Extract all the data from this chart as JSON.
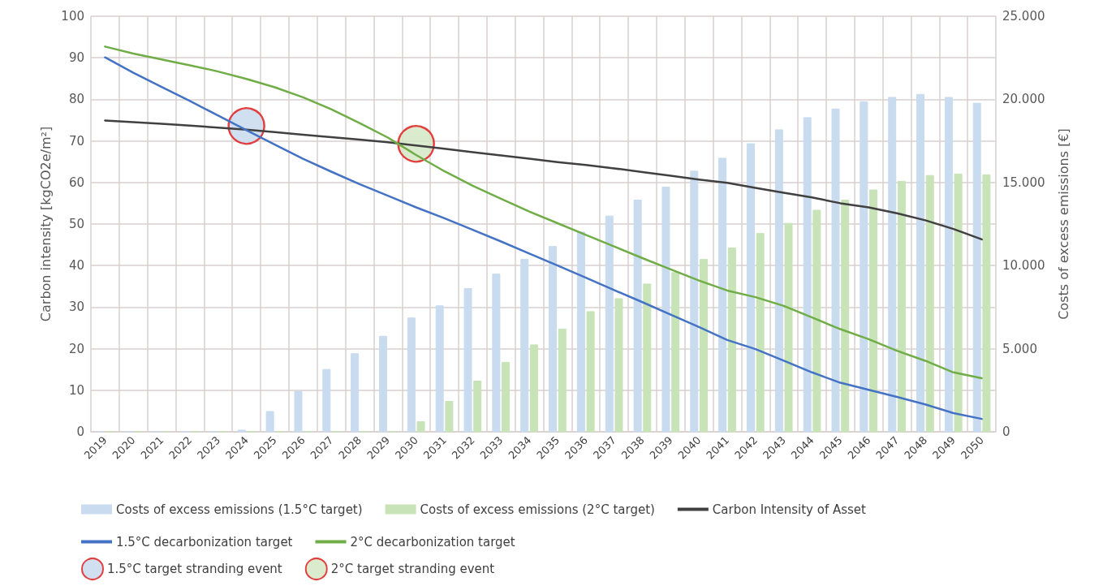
{
  "chart_data": {
    "type": "bar",
    "ylabel": "Carbon intensity [kgCO2e/m²]",
    "y2label": "Costs of excess emissions [€]",
    "categories": [
      "2019",
      "2020",
      "2021",
      "2022",
      "2023",
      "2024",
      "2025",
      "2026",
      "2027",
      "2028",
      "2029",
      "2030",
      "2031",
      "2032",
      "2033",
      "2034",
      "2035",
      "2036",
      "2037",
      "2038",
      "2039",
      "2040",
      "2041",
      "2042",
      "2043",
      "2044",
      "2045",
      "2046",
      "2047",
      "2048",
      "2049",
      "2050"
    ],
    "ylim": [
      0,
      100
    ],
    "yticks": [
      0,
      10,
      20,
      30,
      40,
      50,
      60,
      70,
      80,
      90,
      100
    ],
    "y2lim": [
      0,
      25
    ],
    "y2ticks": [
      0,
      {
        "value": 5,
        "label": "5.000"
      },
      {
        "value": 10,
        "label": "10.000"
      },
      {
        "value": 15,
        "label": "15.000"
      },
      {
        "value": 20,
        "label": "20.000"
      },
      {
        "value": 25,
        "label": "25.000"
      }
    ],
    "grid": true,
    "legend": "bottom",
    "marker": "none",
    "line_style": "solid",
    "series": [
      {
        "name": "Costs of excess emissions (1.5°C target)",
        "axis": "y2",
        "color": "#c9dbef",
        "values": [
          0,
          0,
          0,
          0,
          0,
          0.1,
          1.22,
          2.44,
          3.75,
          4.7,
          5.75,
          6.85,
          7.58,
          8.62,
          9.49,
          10.37,
          11.15,
          12.02,
          12.98,
          13.94,
          14.72,
          15.68,
          16.46,
          17.33,
          18.17,
          18.9,
          19.42,
          19.86,
          20.12,
          20.3,
          20.12,
          19.77
        ]
      },
      {
        "name": "Costs of excess emissions (2°C target)",
        "axis": "y2",
        "color": "#c8e3b8",
        "values": [
          0,
          0,
          0,
          0,
          0,
          0,
          0,
          0,
          0,
          0,
          0,
          0.61,
          1.83,
          3.05,
          4.18,
          5.23,
          6.18,
          7.23,
          8.01,
          8.89,
          9.58,
          10.37,
          11.06,
          11.93,
          12.54,
          13.33,
          13.94,
          14.55,
          15.07,
          15.42,
          15.51,
          15.46
        ]
      },
      {
        "name": "Carbon Intensity of Asset",
        "type": "line",
        "color": "#404040",
        "values": [
          74.9,
          74.5,
          74.1,
          73.7,
          73.2,
          72.7,
          72.1,
          71.5,
          70.9,
          70.3,
          69.7,
          68.9,
          68.1,
          67.3,
          66.5,
          65.7,
          64.9,
          64.2,
          63.4,
          62.5,
          61.6,
          60.7,
          59.9,
          58.7,
          57.5,
          56.4,
          55.0,
          54.0,
          52.6,
          50.9,
          48.8,
          46.3
        ]
      },
      {
        "name": "1.5°C decarbonization target",
        "type": "line",
        "color": "#4472c4",
        "values": [
          90.1,
          86.4,
          83.0,
          79.6,
          76.1,
          72.6,
          69.1,
          65.7,
          62.6,
          59.6,
          56.8,
          54.0,
          51.4,
          48.6,
          45.8,
          42.9,
          40.0,
          37.1,
          34.1,
          31.2,
          28.2,
          25.2,
          22.1,
          19.9,
          17.1,
          14.3,
          11.8,
          10.1,
          8.4,
          6.6,
          4.5,
          3.1
        ]
      },
      {
        "name": "2°C decarbonization target",
        "type": "line",
        "color": "#70ad47",
        "values": [
          92.7,
          91.0,
          89.6,
          88.2,
          86.7,
          84.9,
          82.9,
          80.5,
          77.6,
          74.3,
          70.8,
          66.6,
          62.7,
          59.2,
          56.1,
          53.0,
          50.2,
          47.4,
          44.6,
          41.8,
          39.1,
          36.4,
          34.0,
          32.4,
          30.3,
          27.5,
          24.7,
          22.3,
          19.5,
          17.1,
          14.3,
          12.9
        ]
      },
      {
        "name": "1.5°C target stranding event",
        "type": "scatter",
        "marker": "circle",
        "color": "#c9dbef",
        "values": [
          null,
          null,
          null,
          null,
          null,
          73.6,
          null,
          null,
          null,
          null,
          null,
          null,
          null,
          null,
          null,
          null,
          null,
          null,
          null,
          null,
          null,
          null,
          null,
          null,
          null,
          null,
          null,
          null,
          null,
          null,
          null,
          null
        ]
      },
      {
        "name": "2°C target stranding event",
        "type": "scatter",
        "marker": "circle",
        "color": "#d3e8c6",
        "values": [
          null,
          null,
          null,
          null,
          null,
          null,
          null,
          null,
          null,
          null,
          null,
          69.3,
          null,
          null,
          null,
          null,
          null,
          null,
          null,
          null,
          null,
          null,
          null,
          null,
          null,
          null,
          null,
          null,
          null,
          null,
          null,
          null
        ]
      }
    ]
  }
}
